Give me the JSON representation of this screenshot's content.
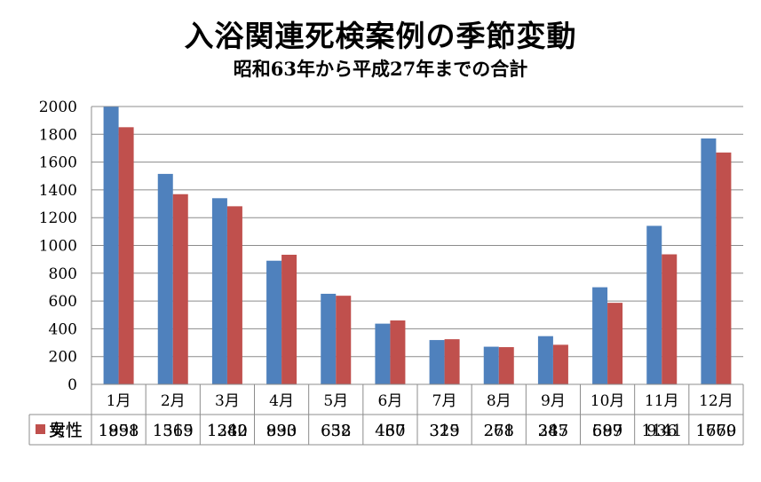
{
  "title": "入浴関連死検案例の季節変動",
  "subtitle": "昭和63年から平成27年までの合計",
  "chart_data": {
    "type": "bar",
    "title": "入浴関連死検案例の季節変動",
    "subtitle": "昭和63年から平成27年までの合計",
    "categories": [
      "1月",
      "2月",
      "3月",
      "4月",
      "5月",
      "6月",
      "7月",
      "8月",
      "9月",
      "10月",
      "11月",
      "12月"
    ],
    "series": [
      {
        "name": "男性",
        "color": "#4f81bd",
        "values": [
          1998,
          1515,
          1340,
          890,
          652,
          437,
          319,
          271,
          347,
          699,
          1141,
          1770
        ]
      },
      {
        "name": "女性",
        "color": "#c0504d",
        "values": [
          1851,
          1369,
          1282,
          933,
          638,
          460,
          325,
          268,
          285,
          587,
          936,
          1669
        ]
      }
    ],
    "yticks": [
      "0",
      "200",
      "400",
      "600",
      "800",
      "1000",
      "1200",
      "1400",
      "1600",
      "1800",
      "2000"
    ],
    "ylim": [
      0,
      2000
    ],
    "grid": true,
    "legend": "data-table"
  }
}
